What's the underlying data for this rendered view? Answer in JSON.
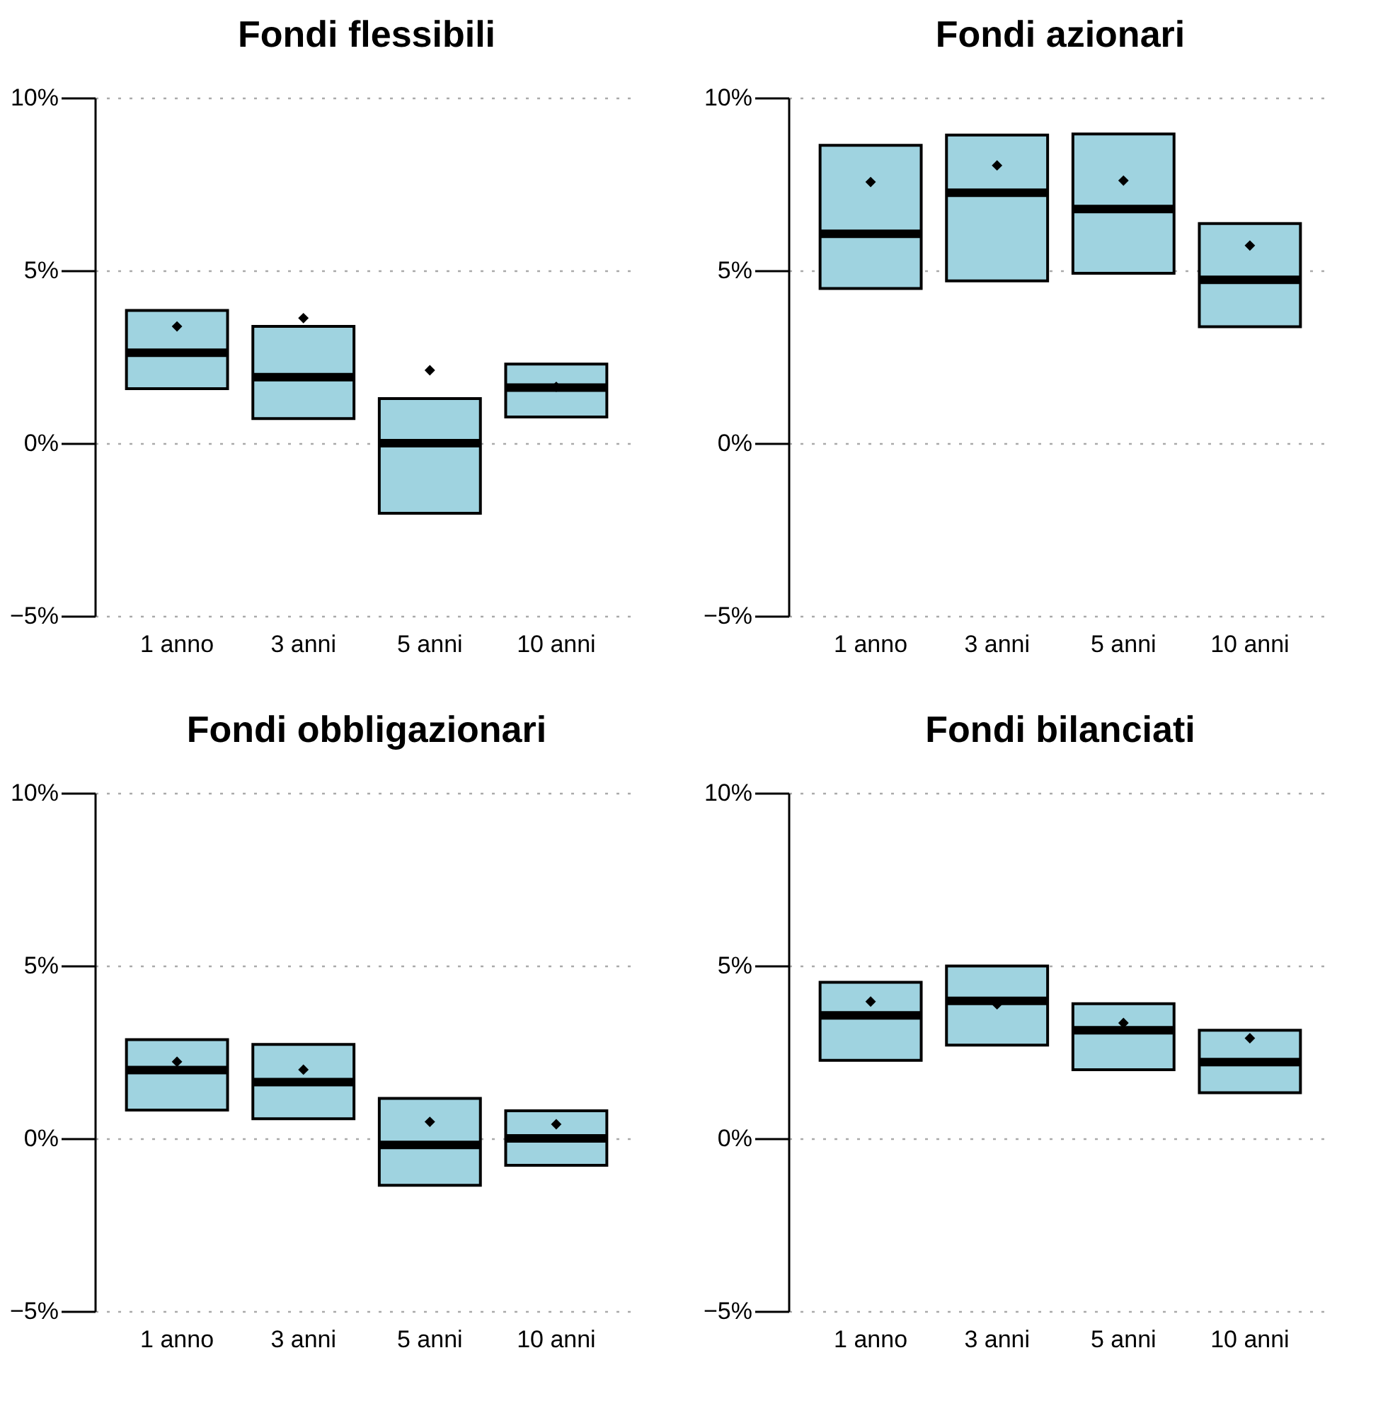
{
  "chart_data": [
    {
      "type": "box",
      "title": "Fondi flessibili",
      "categories": [
        "1 anno",
        "3 anni",
        "5 anni",
        "10 anni"
      ],
      "ylim": [
        -5,
        10
      ],
      "yticks": [
        {
          "value": -5,
          "label": "−5%"
        },
        {
          "value": 0,
          "label": "0%"
        },
        {
          "value": 5,
          "label": "5%"
        },
        {
          "value": 10,
          "label": "10%"
        }
      ],
      "grid": "y",
      "marker": "diamond",
      "series": [
        {
          "color": "#9fd3e0",
          "boxes": [
            {
              "low": 1.58,
              "q1": 1.58,
              "median": 2.62,
              "q3": 3.84,
              "high": 3.84,
              "mean": 3.38
            },
            {
              "low": 0.71,
              "q1": 0.71,
              "median": 1.91,
              "q3": 3.38,
              "high": 3.38,
              "mean": 3.62
            },
            {
              "low": -2.03,
              "q1": -2.03,
              "median": 0,
              "q3": 1.29,
              "high": 1.29,
              "mean": 2.11
            },
            {
              "low": 0.76,
              "q1": 0.76,
              "median": 1.61,
              "q3": 2.29,
              "high": 2.29,
              "mean": 1.63
            }
          ]
        }
      ]
    },
    {
      "type": "box",
      "title": "Fondi azionari",
      "categories": [
        "1 anno",
        "3 anni",
        "5 anni",
        "10 anni"
      ],
      "ylim": [
        -5,
        10
      ],
      "yticks": [
        {
          "value": -5,
          "label": "−5%"
        },
        {
          "value": 0,
          "label": "0%"
        },
        {
          "value": 5,
          "label": "5%"
        },
        {
          "value": 10,
          "label": "10%"
        }
      ],
      "grid": "y",
      "marker": "diamond",
      "series": [
        {
          "color": "#9fd3e0",
          "boxes": [
            {
              "low": 4.48,
              "q1": 4.48,
              "median": 6.06,
              "q3": 8.62,
              "high": 8.62,
              "mean": 7.56
            },
            {
              "low": 4.7,
              "q1": 4.7,
              "median": 7.25,
              "q3": 8.92,
              "high": 8.92,
              "mean": 8.04
            },
            {
              "low": 4.92,
              "q1": 4.92,
              "median": 6.78,
              "q3": 8.95,
              "high": 8.95,
              "mean": 7.6
            },
            {
              "low": 3.37,
              "q1": 3.37,
              "median": 4.73,
              "q3": 6.36,
              "high": 6.36,
              "mean": 5.72
            }
          ]
        }
      ]
    },
    {
      "type": "box",
      "title": "Fondi obbligazionari",
      "categories": [
        "1 anno",
        "3 anni",
        "5 anni",
        "10 anni"
      ],
      "ylim": [
        -5,
        10
      ],
      "yticks": [
        {
          "value": -5,
          "label": "−5%"
        },
        {
          "value": 0,
          "label": "0%"
        },
        {
          "value": 5,
          "label": "5%"
        },
        {
          "value": 10,
          "label": "10%"
        }
      ],
      "grid": "y",
      "marker": "diamond",
      "series": [
        {
          "color": "#9fd3e0",
          "boxes": [
            {
              "low": 0.82,
              "q1": 0.82,
              "median": 1.98,
              "q3": 2.86,
              "high": 2.86,
              "mean": 2.22
            },
            {
              "low": 0.57,
              "q1": 0.57,
              "median": 1.63,
              "q3": 2.72,
              "high": 2.72,
              "mean": 1.99
            },
            {
              "low": -1.36,
              "q1": -1.36,
              "median": -0.19,
              "q3": 1.16,
              "high": 1.16,
              "mean": 0.48
            },
            {
              "low": -0.78,
              "q1": -0.78,
              "median": 0,
              "q3": 0.8,
              "high": 0.8,
              "mean": 0.41
            }
          ]
        }
      ]
    },
    {
      "type": "box",
      "title": "Fondi bilanciati",
      "categories": [
        "1 anno",
        "3 anni",
        "5 anni",
        "10 anni"
      ],
      "ylim": [
        -5,
        10
      ],
      "yticks": [
        {
          "value": -5,
          "label": "−5%"
        },
        {
          "value": 0,
          "label": "0%"
        },
        {
          "value": 5,
          "label": "5%"
        },
        {
          "value": 10,
          "label": "10%"
        }
      ],
      "grid": "y",
      "marker": "diamond",
      "series": [
        {
          "color": "#9fd3e0",
          "boxes": [
            {
              "low": 2.26,
              "q1": 2.26,
              "median": 3.56,
              "q3": 4.52,
              "high": 4.52,
              "mean": 3.96
            },
            {
              "low": 2.7,
              "q1": 2.7,
              "median": 3.98,
              "q3": 4.99,
              "high": 4.99,
              "mean": 3.88
            },
            {
              "low": 1.99,
              "q1": 1.99,
              "median": 3.13,
              "q3": 3.9,
              "high": 3.9,
              "mean": 3.34
            },
            {
              "low": 1.32,
              "q1": 1.32,
              "median": 2.21,
              "q3": 3.13,
              "high": 3.13,
              "mean": 2.9
            }
          ]
        }
      ]
    }
  ]
}
